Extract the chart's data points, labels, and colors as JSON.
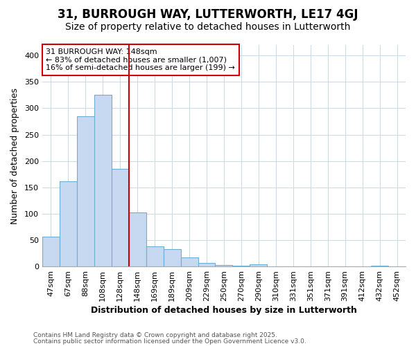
{
  "title": "31, BURROUGH WAY, LUTTERWORTH, LE17 4GJ",
  "subtitle": "Size of property relative to detached houses in Lutterworth",
  "xlabel": "Distribution of detached houses by size in Lutterworth",
  "ylabel": "Number of detached properties",
  "categories": [
    "47sqm",
    "67sqm",
    "88sqm",
    "108sqm",
    "128sqm",
    "148sqm",
    "169sqm",
    "189sqm",
    "209sqm",
    "229sqm",
    "250sqm",
    "270sqm",
    "290sqm",
    "310sqm",
    "331sqm",
    "351sqm",
    "371sqm",
    "391sqm",
    "412sqm",
    "432sqm",
    "452sqm"
  ],
  "values": [
    57,
    162,
    285,
    325,
    185,
    102,
    38,
    33,
    17,
    7,
    3,
    2,
    4,
    0,
    0,
    0,
    0,
    0,
    0,
    2,
    0
  ],
  "bar_color": "#c6d9f0",
  "bar_edge_color": "#6baed6",
  "vline_color": "#cc0000",
  "vline_x_index": 5,
  "annotation_text": "31 BURROUGH WAY: 148sqm\n← 83% of detached houses are smaller (1,007)\n16% of semi-detached houses are larger (199) →",
  "annotation_box_color": "white",
  "annotation_box_edge_color": "#cc0000",
  "ylim": [
    0,
    420
  ],
  "yticks": [
    0,
    50,
    100,
    150,
    200,
    250,
    300,
    350,
    400
  ],
  "footnote1": "Contains HM Land Registry data © Crown copyright and database right 2025.",
  "footnote2": "Contains public sector information licensed under the Open Government Licence v3.0.",
  "background_color": "#ffffff",
  "grid_color": "#c8d8e8",
  "title_fontsize": 12,
  "subtitle_fontsize": 10,
  "axis_label_fontsize": 9,
  "tick_fontsize": 8,
  "annotation_fontsize": 8
}
